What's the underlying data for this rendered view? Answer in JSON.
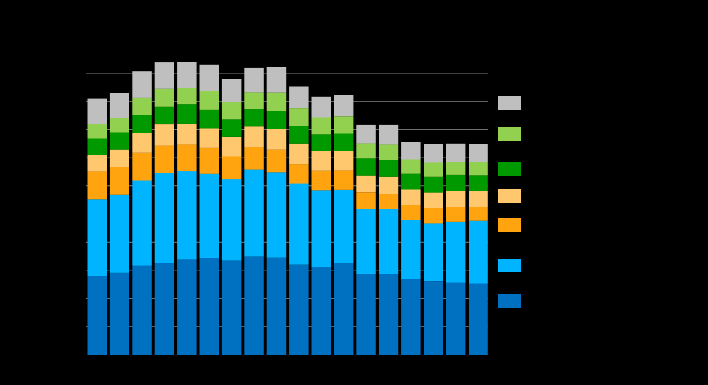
{
  "chart_data": {
    "type": "bar",
    "stacked": true,
    "ylim": [
      0,
      100
    ],
    "grid": true,
    "legend_placement": "right",
    "categories": [
      "",
      "",
      "",
      "",
      "",
      "",
      "",
      "",
      "",
      "",
      "",
      "",
      "",
      "",
      "",
      "",
      "",
      ""
    ],
    "series": [
      {
        "color": "#0070c0",
        "values": [
          28.0,
          29.0,
          31.5,
          32.5,
          33.8,
          34.4,
          33.5,
          34.8,
          34.5,
          32.0,
          31.0,
          32.5,
          28.5,
          28.5,
          27.0,
          26.0,
          25.6,
          25.2
        ]
      },
      {
        "color": "#00b4ff",
        "values": [
          27.2,
          27.8,
          30.3,
          32.0,
          31.3,
          29.8,
          28.9,
          30.9,
          30.3,
          28.8,
          27.4,
          26.0,
          23.2,
          23.2,
          20.7,
          20.6,
          21.6,
          22.3
        ]
      },
      {
        "color": "#ffa30f",
        "values": [
          9.8,
          9.8,
          10.0,
          9.8,
          9.5,
          9.3,
          8.0,
          8.0,
          8.0,
          7.0,
          7.0,
          7.0,
          6.0,
          5.5,
          5.5,
          5.5,
          5.3,
          5.0
        ]
      },
      {
        "color": "#ffc86e",
        "values": [
          6.0,
          6.2,
          7.0,
          7.5,
          7.5,
          7.0,
          7.0,
          7.3,
          7.5,
          7.2,
          7.0,
          6.8,
          6.0,
          6.0,
          5.4,
          5.5,
          5.5,
          5.5
        ]
      },
      {
        "color": "#009900",
        "values": [
          5.8,
          6.2,
          6.3,
          6.2,
          6.8,
          6.5,
          6.3,
          6.2,
          6.3,
          6.2,
          5.9,
          6.2,
          6.0,
          6.0,
          5.6,
          5.6,
          5.9,
          5.8
        ]
      },
      {
        "color": "#92d050",
        "values": [
          5.2,
          5.1,
          6.1,
          6.4,
          5.7,
          6.7,
          6.0,
          6.1,
          6.6,
          6.5,
          6.1,
          6.2,
          5.4,
          5.4,
          5.2,
          5.0,
          4.6,
          4.6
        ]
      },
      {
        "color": "#bfbfbf",
        "values": [
          9.0,
          9.0,
          9.5,
          9.5,
          9.5,
          9.3,
          8.3,
          8.7,
          9.0,
          7.5,
          7.3,
          7.5,
          6.5,
          7.0,
          6.2,
          6.5,
          6.5,
          6.5
        ]
      }
    ]
  }
}
